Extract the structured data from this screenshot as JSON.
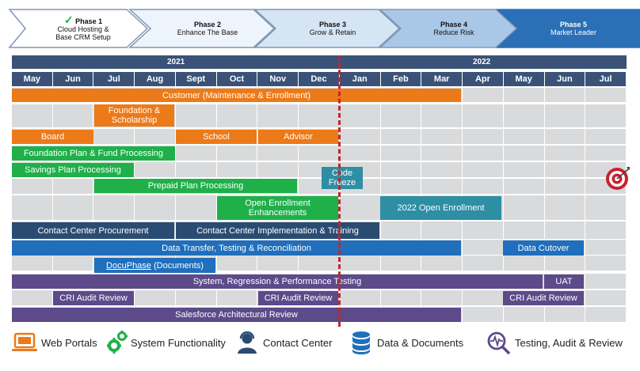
{
  "phases": [
    {
      "check": "✓",
      "title": "Phase 1",
      "lines": [
        "Cloud Hosting &",
        "Base CRM Setup"
      ],
      "fill": "#ffffff",
      "text_color": "#111111"
    },
    {
      "title": "Phase 2",
      "lines": [
        "Enhance The Base"
      ],
      "fill": "#eef4fb",
      "text_color": "#111111"
    },
    {
      "title": "Phase 3",
      "lines": [
        "Grow & Retain"
      ],
      "fill": "#d6e5f4",
      "text_color": "#111111"
    },
    {
      "title": "Phase 4",
      "lines": [
        "Reduce Risk"
      ],
      "fill": "#a9c8e8",
      "text_color": "#111111"
    },
    {
      "title": "Phase 5",
      "lines": [
        "Market Leader"
      ],
      "fill": "#2b6fb6",
      "text_color": "#ffffff"
    }
  ],
  "years": {
    "y2021": "2021",
    "y2022": "2022"
  },
  "months": [
    "May",
    "Jun",
    "Jul",
    "Aug",
    "Sept",
    "Oct",
    "Nov",
    "Dec",
    "Jan",
    "Feb",
    "Mar",
    "Apr",
    "May",
    "Jun",
    "Jul"
  ],
  "bars": {
    "customer": "Customer (Maintenance & Enrollment)",
    "foundation": "Foundation & Scholarship",
    "board": "Board",
    "school": "School",
    "advisor": "Advisor",
    "foundation_plan": "Foundation Plan & Fund Processing",
    "savings": "Savings Plan Processing",
    "code_freeze": "Code Freeze",
    "prepaid": "Prepaid Plan Processing",
    "open_enroll": "Open Enrollment Enhancements",
    "open_enroll_2022": "2022 Open Enrollment",
    "cc_procurement": "Contact Center Procurement",
    "cc_impl": "Contact Center Implementation & Training",
    "data_transfer": "Data Transfer, Testing & Reconciliation",
    "data_cutover": "Data Cutover",
    "docuphase": "DocuPhase (Documents)",
    "system_testing": "System, Regression & Performance Testing",
    "uat": "UAT",
    "cri1": "CRI Audit Review",
    "cri2": "CRI Audit Review",
    "cri3": "CRI Audit Review",
    "salesforce": "Salesforce Architectural Review"
  },
  "legend": {
    "web": "Web Portals",
    "system": "System Functionality",
    "contact": "Contact Center",
    "data": "Data & Documents",
    "testing": "Testing, Audit & Review"
  }
}
